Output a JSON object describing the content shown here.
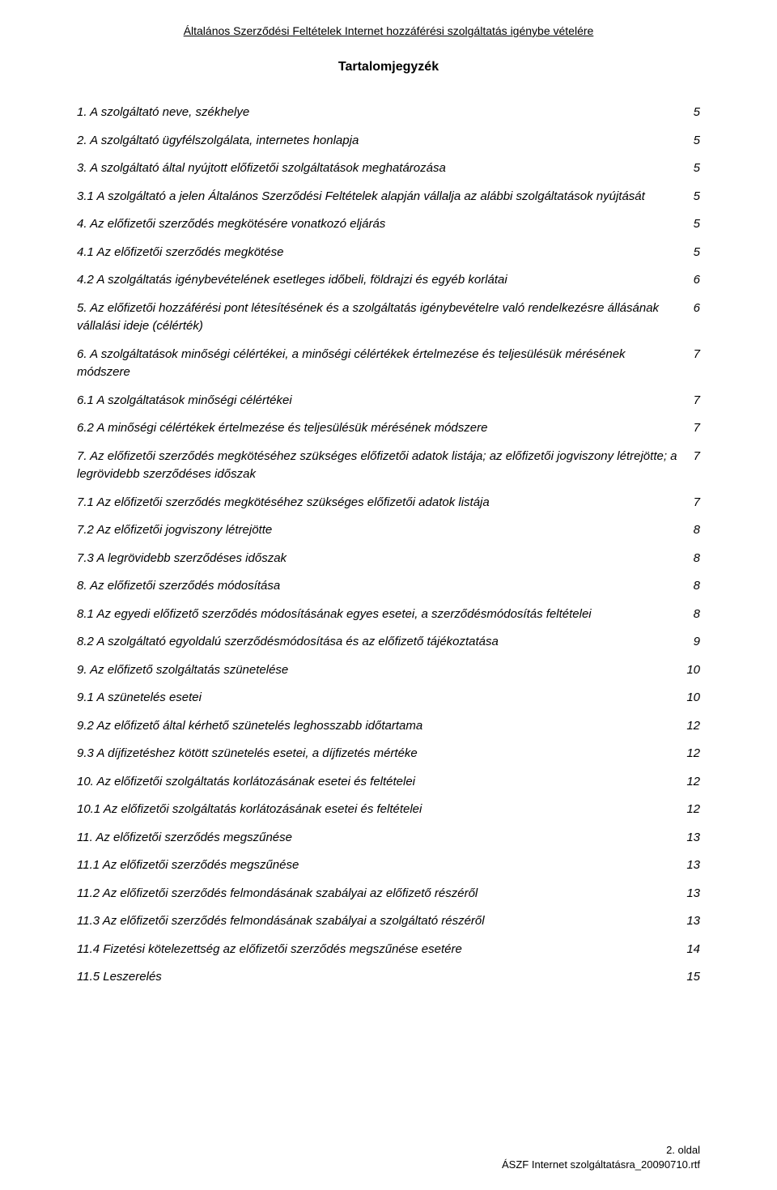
{
  "header": {
    "underlineText": "Általános Szerződési Feltételek Internet hozzáférési szolgáltatás igénybe vételére",
    "title": "Tartalomjegyzék"
  },
  "toc": [
    {
      "label": "1.  A szolgáltató neve, székhelye",
      "page": "5"
    },
    {
      "label": "2.  A szolgáltató ügyfélszolgálata, internetes honlapja",
      "page": "5"
    },
    {
      "label": "3.  A szolgáltató által nyújtott előfizetői szolgáltatások meghatározása",
      "page": "5"
    },
    {
      "label": "3.1 A szolgáltató a jelen Általános Szerződési Feltételek alapján vállalja az alábbi szolgáltatások nyújtását",
      "page": "5"
    },
    {
      "label": "4.  Az előfizetői szerződés megkötésére vonatkozó eljárás",
      "page": "5"
    },
    {
      "label": "4.1 Az előfizetői szerződés megkötése",
      "page": "5"
    },
    {
      "label": "4.2  A szolgáltatás igénybevételének esetleges időbeli, földrajzi és egyéb korlátai",
      "page": "6"
    },
    {
      "label": "5.  Az előfizetői hozzáférési pont létesítésének és a szolgáltatás igénybevételre való rendelkezésre állásának vállalási ideje (célérték)",
      "page": "6"
    },
    {
      "label": "6.  A szolgáltatások minőségi célértékei, a minőségi célértékek értelmezése és teljesülésük mérésének módszere",
      "page": "7"
    },
    {
      "label": "6.1  A szolgáltatások minőségi célértékei",
      "page": "7"
    },
    {
      "label": "6.2  A minőségi célértékek értelmezése és teljesülésük mérésének módszere",
      "page": "7"
    },
    {
      "label": "7.  Az előfizetői szerződés megkötéséhez szükséges előfizetői adatok listája; az előfizetői jogviszony létrejötte; a legrövidebb szerződéses időszak",
      "page": "7"
    },
    {
      "label": "7.1  Az előfizetői szerződés megkötéséhez szükséges előfizetői adatok listája",
      "page": "7"
    },
    {
      "label": "7.2  Az előfizetői jogviszony létrejötte",
      "page": "8"
    },
    {
      "label": "7.3  A legrövidebb szerződéses időszak",
      "page": "8"
    },
    {
      "label": "8.  Az előfizetői szerződés módosítása",
      "page": "8"
    },
    {
      "label": "8.1  Az egyedi előfizető szerződés módosításának egyes esetei, a szerződésmódosítás feltételei",
      "page": "8"
    },
    {
      "label": "8.2  A szolgáltató egyoldalú szerződésmódosítása és az előfizető tájékoztatása",
      "page": "9"
    },
    {
      "label": "9.  Az előfizető szolgáltatás szünetelése",
      "page": "10"
    },
    {
      "label": "9.1  A szünetelés esetei",
      "page": "10"
    },
    {
      "label": "9.2  Az előfizető által kérhető szünetelés leghosszabb időtartama",
      "page": "12"
    },
    {
      "label": "9.3  A díjfizetéshez kötött szünetelés esetei, a díjfizetés mértéke",
      "page": "12"
    },
    {
      "label": "10.  Az előfizetői szolgáltatás korlátozásának esetei és feltételei",
      "page": "12"
    },
    {
      "label": "10.1  Az előfizetői szolgáltatás korlátozásának esetei és feltételei",
      "page": "12"
    },
    {
      "label": "11.  Az előfizetői szerződés megszűnése",
      "page": "13"
    },
    {
      "label": "11.1  Az előfizetői szerződés megszűnése",
      "page": "13"
    },
    {
      "label": "11.2  Az előfizetői szerződés felmondásának szabályai az előfizető részéről",
      "page": "13"
    },
    {
      "label": "11.3  Az előfizetői szerződés felmondásának szabályai a szolgáltató részéről",
      "page": "13"
    },
    {
      "label": "11.4  Fizetési kötelezettség az előfizetői szerződés megszűnése esetére",
      "page": "14"
    },
    {
      "label": "11.5  Leszerelés",
      "page": "15"
    }
  ],
  "footer": {
    "pageLabel": "2. oldal",
    "fileLabel": "ÁSZF Internet szolgáltatásra_20090710.rtf"
  }
}
